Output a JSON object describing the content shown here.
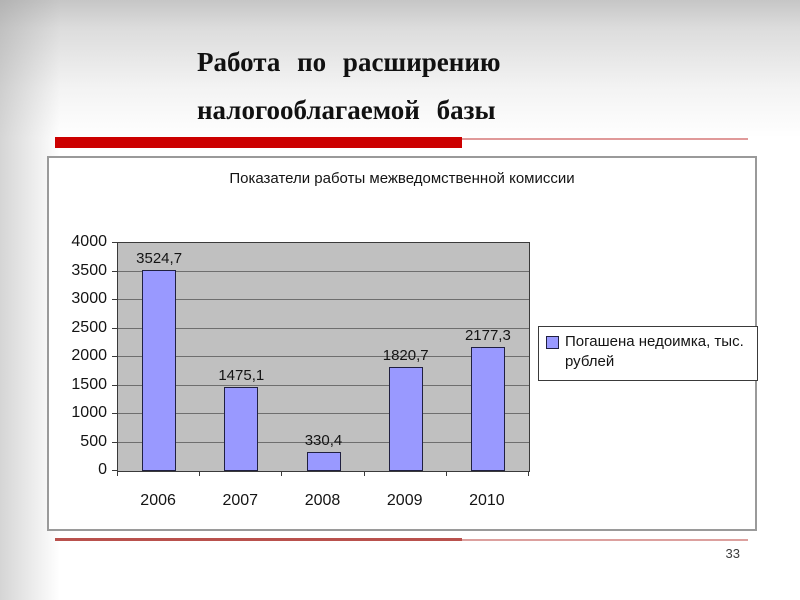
{
  "slide": {
    "title_line1": "Работа  по  расширению",
    "title_line2": "налогооблагаемой  базы",
    "page_number": "33",
    "accent_color": "#cc0000",
    "divider_color": "#b9514d"
  },
  "chart_data": {
    "type": "bar",
    "title": "Показатели работы межведомственной комиссии",
    "categories": [
      "2006",
      "2007",
      "2008",
      "2009",
      "2010"
    ],
    "series": [
      {
        "name": "Погашена недоимка, тыс. рублей",
        "values": [
          3524.7,
          1475.1,
          330.4,
          1820.7,
          2177.3
        ]
      }
    ],
    "data_labels": [
      "3524,7",
      "1475,1",
      "330,4",
      "1820,7",
      "2177,3"
    ],
    "xlabel": "",
    "ylabel": "",
    "ylim": [
      0,
      4000
    ],
    "yticks": [
      0,
      500,
      1000,
      1500,
      2000,
      2500,
      3000,
      3500,
      4000
    ],
    "grid": true,
    "legend_position": "right",
    "legend_label": "Погашена недоимка, тыс. рублей",
    "bar_color": "#9999ff",
    "bar_border_color": "#202040",
    "plot_bg": "#c0c0c0"
  }
}
